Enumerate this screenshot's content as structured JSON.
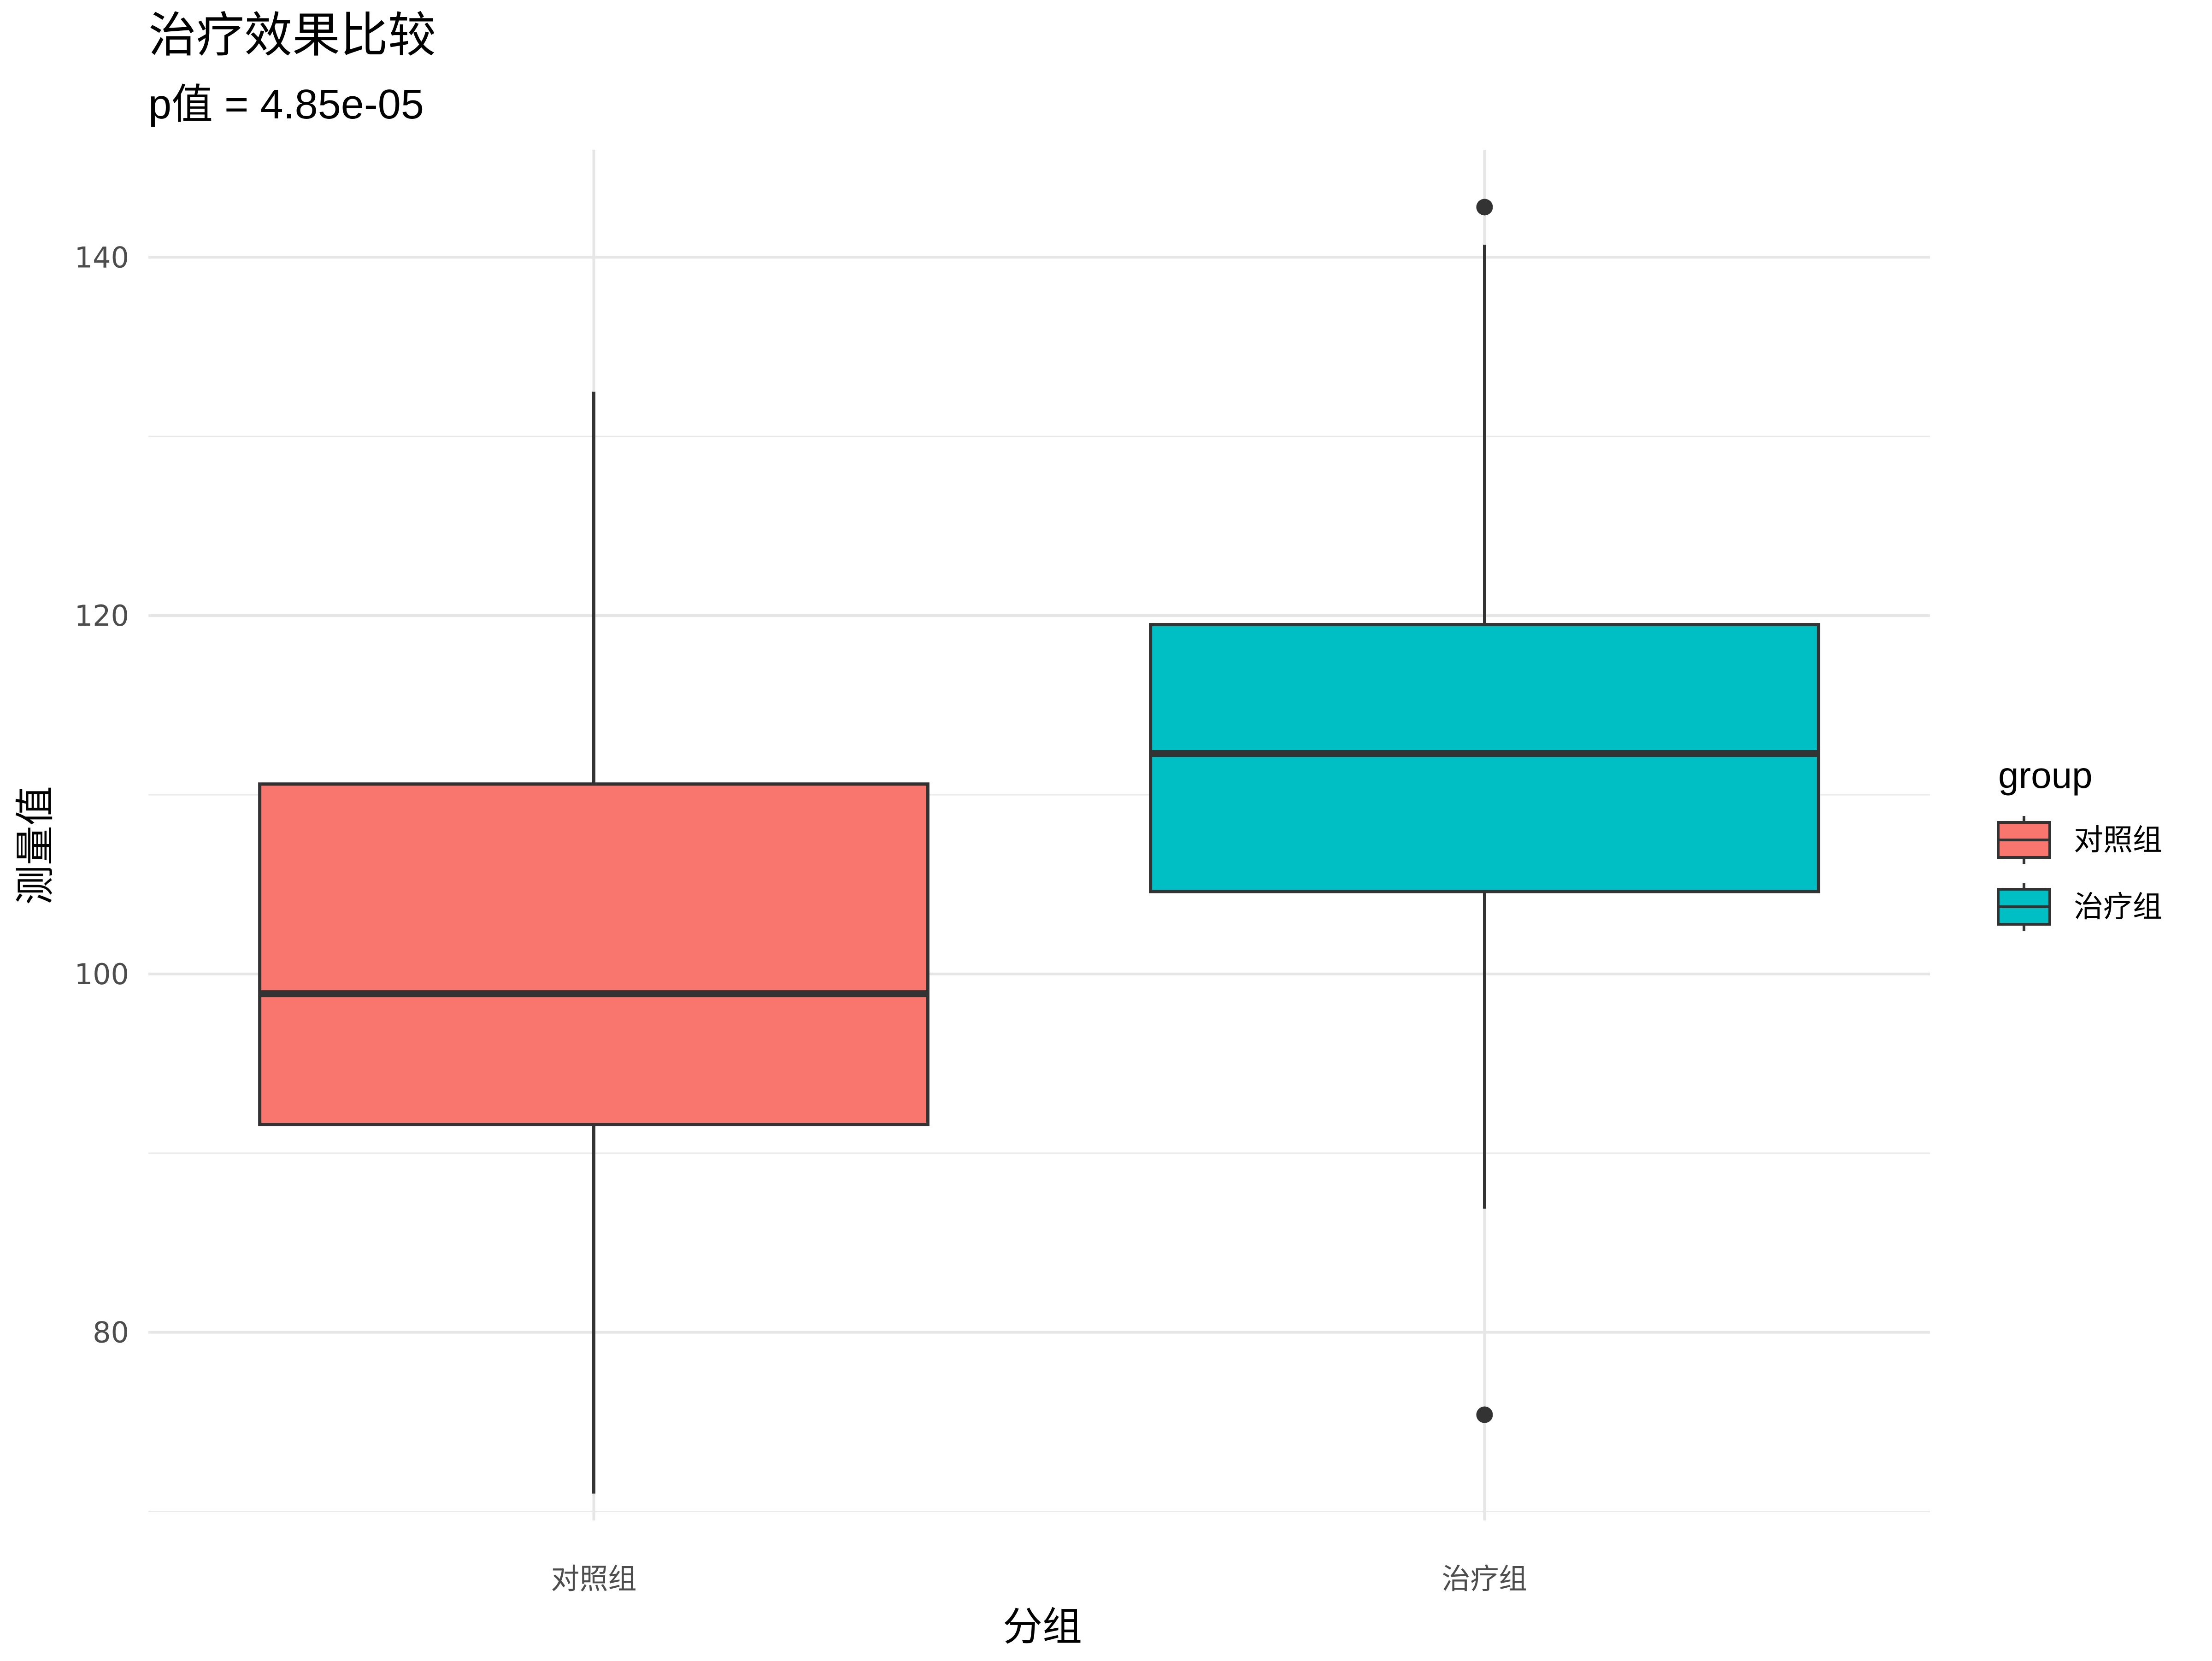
{
  "chart_data": {
    "type": "box",
    "title": "治疗效果比较",
    "subtitle": "p值 = 4.85e-05",
    "xlabel": "分组",
    "ylabel": "测量值",
    "ylim": [
      69.5,
      146
    ],
    "y_ticks": [
      80,
      100,
      120,
      140
    ],
    "y_minor_ticks": [
      70,
      90,
      110,
      130
    ],
    "grid": true,
    "categories": [
      "对照组",
      "治疗组"
    ],
    "series": [
      {
        "name": "对照组",
        "color": "#F8766D",
        "whisker_low": 71.0,
        "q1": 91.6,
        "median": 98.9,
        "q3": 110.6,
        "whisker_high": 132.5,
        "outliers": []
      },
      {
        "name": "治疗组",
        "color": "#00BFC4",
        "whisker_low": 86.9,
        "q1": 104.6,
        "median": 112.3,
        "q3": 119.5,
        "whisker_high": 140.7,
        "outliers": [
          142.8,
          75.4
        ]
      }
    ],
    "legend": {
      "title": "group",
      "position": "right",
      "entries": [
        "对照组",
        "治疗组"
      ]
    }
  }
}
